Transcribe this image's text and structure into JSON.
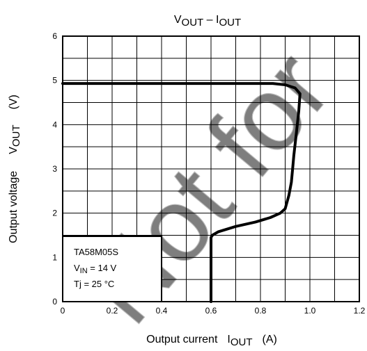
{
  "chart_data": {
    "type": "line",
    "title_main": "V",
    "title_sub1": "OUT",
    "title_dash": " – I",
    "title_sub2": "OUT",
    "ylabel_text": "Output voltage",
    "ylabel_var_main": "V",
    "ylabel_var_sub": "OUT",
    "ylabel_unit": "(V)",
    "xlabel_text": "Output current",
    "xlabel_var_main": "I",
    "xlabel_var_sub": "OUT",
    "xlabel_unit": "(A)",
    "xlim": [
      0,
      1.2
    ],
    "ylim": [
      0,
      6
    ],
    "grid": true,
    "xticks": [
      "0",
      "0.2",
      "0.4",
      "0.6",
      "0.8",
      "1.0",
      "1.2"
    ],
    "yticks": [
      "0",
      "1",
      "2",
      "3",
      "4",
      "5",
      "6"
    ],
    "legend": {
      "line1": "TA58M05S",
      "line2_main": "V",
      "line2_sub": "IN",
      "line2_rest": " = 14 V",
      "line3": "Tj = 25 °C"
    },
    "series": [
      {
        "x": [
          0,
          0.5,
          0.85,
          0.9,
          0.94,
          0.96,
          0.955,
          0.945,
          0.935,
          0.93,
          0.925,
          0.915,
          0.9,
          0.88,
          0.84,
          0.78,
          0.7,
          0.63,
          0.605,
          0.6,
          0.6
        ],
        "y": [
          4.93,
          4.93,
          4.93,
          4.9,
          4.83,
          4.7,
          4.3,
          3.8,
          3.3,
          3.0,
          2.7,
          2.4,
          2.1,
          2.0,
          1.9,
          1.8,
          1.7,
          1.58,
          1.5,
          1.45,
          0
        ]
      }
    ]
  }
}
